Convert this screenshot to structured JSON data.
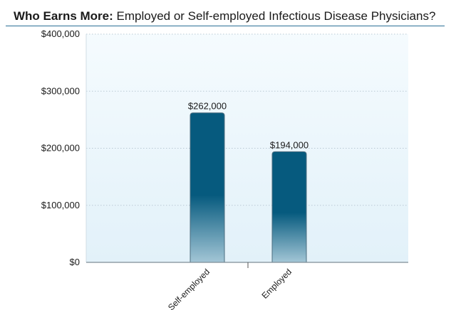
{
  "header": {
    "title_bold": "Who Earns More:",
    "title_rest": " Employed or Self-employed Infectious Disease Physicians?"
  },
  "chart_data": {
    "type": "bar",
    "categories": [
      "Self-employed",
      "Employed"
    ],
    "values": [
      262000,
      194000
    ],
    "value_labels": [
      "$262,000",
      "$194,000"
    ],
    "yticks": [
      0,
      100000,
      200000,
      300000,
      400000
    ],
    "ytick_labels": [
      "$0",
      "$100,000",
      "$200,000",
      "$300,000",
      "$400,000"
    ],
    "ylim": [
      0,
      400000
    ],
    "grid": true,
    "legend": "none",
    "colors": {
      "bar_top": "#065a7e",
      "bar_bottom": "#a3c6d6",
      "plot_bg": "#eef7fc",
      "grid": "#b9c9d4",
      "title_rule": "#2a6f97"
    }
  }
}
